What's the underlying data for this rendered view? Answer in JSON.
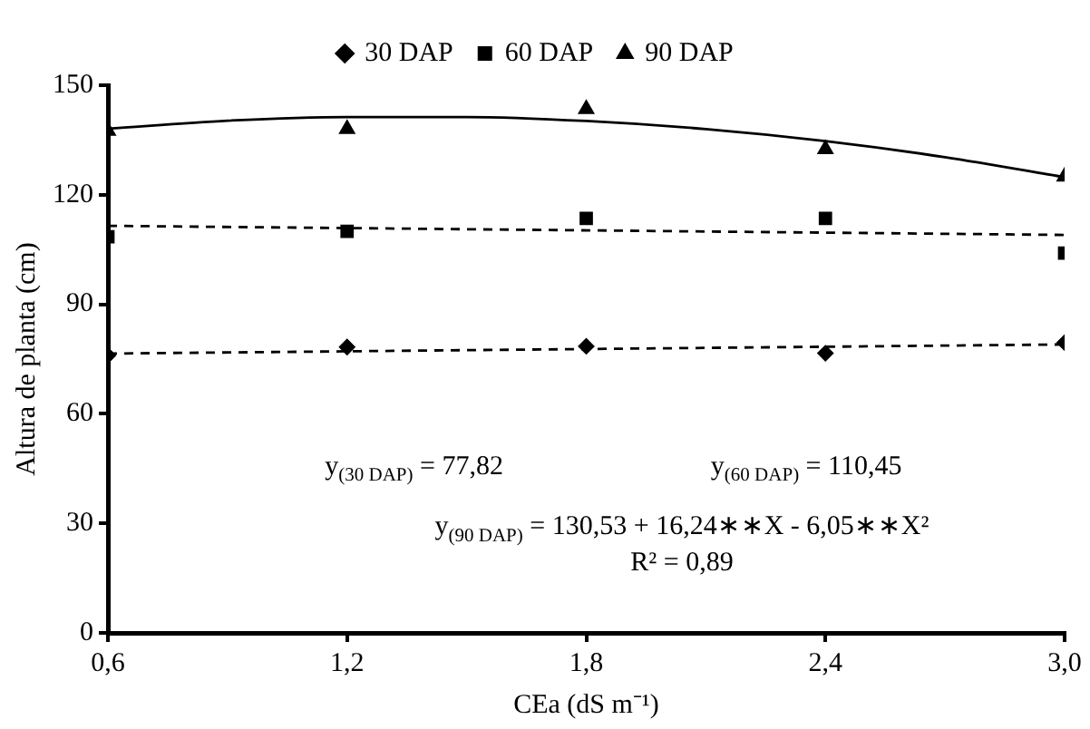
{
  "chart_data": {
    "type": "scatter",
    "xlabel": "CEa (dS m⁻¹)",
    "ylabel": "Altura de planta (cm)",
    "xlim": [
      0.6,
      3.0
    ],
    "xticks": [
      {
        "value": 0.6,
        "label": "0,6"
      },
      {
        "value": 1.2,
        "label": "1,2"
      },
      {
        "value": 1.8,
        "label": "1,8"
      },
      {
        "value": 2.4,
        "label": "2,4"
      },
      {
        "value": 3.0,
        "label": "3,0"
      }
    ],
    "ylim": [
      0,
      150
    ],
    "yticks": [
      0,
      30,
      60,
      90,
      120,
      150
    ],
    "grid": false,
    "legend": "top",
    "x": [
      0.6,
      1.2,
      1.8,
      2.4,
      3.0
    ],
    "series": [
      {
        "name": "30 DAP",
        "type": "scatter",
        "marker": "diamond",
        "color": "#000000",
        "values": [
          76,
          78.3,
          78.5,
          76.6,
          79.5
        ]
      },
      {
        "name": "60 DAP",
        "type": "scatter",
        "marker": "square",
        "color": "#000000",
        "values": [
          108.5,
          110,
          113.5,
          113.5,
          104
        ]
      },
      {
        "name": "90 DAP",
        "type": "scatter",
        "marker": "triangle",
        "color": "#000000",
        "values": [
          137.5,
          138,
          143.5,
          132.5,
          125
        ]
      },
      {
        "type": "line",
        "marker": "none",
        "line_style": "dashed",
        "color": "#000000",
        "x": [
          0.6,
          3.0
        ],
        "values": [
          76.5,
          79
        ]
      },
      {
        "type": "line",
        "marker": "none",
        "line_style": "dashed",
        "color": "#000000",
        "x": [
          0.6,
          3.0
        ],
        "values": [
          111.5,
          109
        ]
      },
      {
        "type": "line",
        "marker": "none",
        "line_style": "solid",
        "color": "#000000",
        "x": [
          0.6,
          0.9,
          1.2,
          1.5,
          1.8,
          2.1,
          2.4,
          2.7,
          3.0
        ],
        "values": [
          138.1,
          140.3,
          141.3,
          141.3,
          140.2,
          138,
          134.7,
          130.3,
          124.8
        ]
      }
    ],
    "annotations": [
      "y$_{(30 DAP)}$ = 77,82",
      "y$_{(60 DAP)}$ = 110,45",
      "y$_{(90 DAP)}$ = 130,53 + 16,24∗∗X - 6,05∗∗X²",
      "R² = 0,89"
    ]
  }
}
